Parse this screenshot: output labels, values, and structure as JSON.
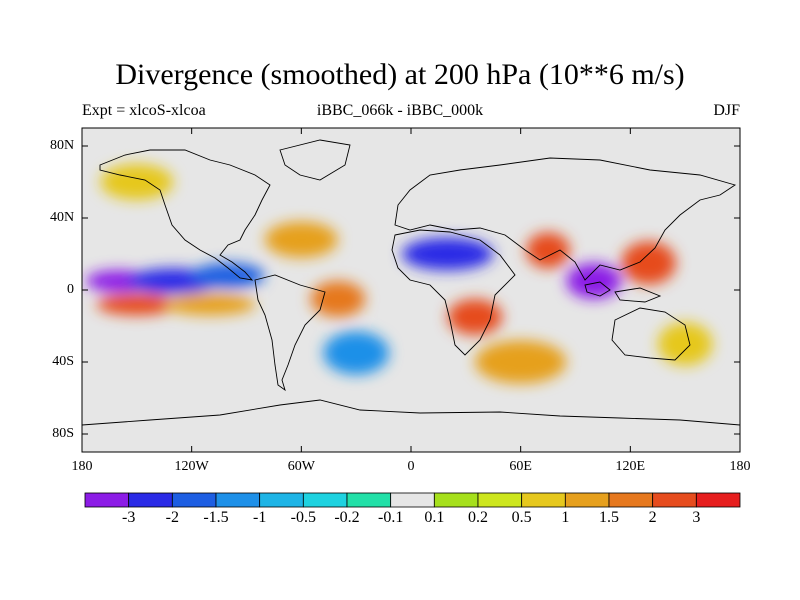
{
  "title": "Divergence (smoothed) at 200 hPa (10**6 m/s)",
  "subtitle_left": "Expt = xlcoS-xlcoa",
  "subtitle_center": "iBBC_066k - iBBC_000k",
  "subtitle_right": "DJF",
  "lat_labels": [
    "80N",
    "40N",
    "0",
    "40S",
    "80S"
  ],
  "lat_values": [
    80,
    40,
    0,
    -40,
    -80
  ],
  "lon_labels": [
    "180",
    "120W",
    "60W",
    "0",
    "60E",
    "120E",
    "180"
  ],
  "lon_values": [
    -180,
    -120,
    -60,
    0,
    60,
    120,
    180
  ],
  "colorbar": {
    "colors": [
      "#8c1ce6",
      "#2a2ae6",
      "#1d5ee2",
      "#1e90e8",
      "#1eb4e6",
      "#1ed2e0",
      "#22e0a8",
      "#e6e6e6",
      "#a6e01c",
      "#cde61e",
      "#e6c81e",
      "#e6a01e",
      "#e6781e",
      "#e64c1e",
      "#e61e1e"
    ],
    "labels": [
      "-3",
      "-2",
      "-1.5",
      "-1",
      "-0.5",
      "-0.2",
      "-0.1",
      "0.1",
      "0.2",
      "0.5",
      "1",
      "1.5",
      "2",
      "3"
    ]
  },
  "map_data": {
    "anomalies": [
      {
        "lon": -160,
        "lat": 5,
        "level": -3,
        "rx": 18,
        "ry": 6
      },
      {
        "lon": -130,
        "lat": 5,
        "level": -2,
        "rx": 25,
        "ry": 7
      },
      {
        "lon": -100,
        "lat": 8,
        "level": -1.5,
        "rx": 20,
        "ry": 7
      },
      {
        "lon": -150,
        "lat": -8,
        "level": 2,
        "rx": 22,
        "ry": 6
      },
      {
        "lon": -110,
        "lat": -8,
        "level": 1,
        "rx": 25,
        "ry": 6
      },
      {
        "lon": -40,
        "lat": -5,
        "level": 1.5,
        "rx": 15,
        "ry": 10
      },
      {
        "lon": -60,
        "lat": 28,
        "level": 1,
        "rx": 20,
        "ry": 10
      },
      {
        "lon": 20,
        "lat": 20,
        "level": -2,
        "rx": 25,
        "ry": 9
      },
      {
        "lon": 35,
        "lat": -15,
        "level": 2,
        "rx": 15,
        "ry": 10
      },
      {
        "lon": 75,
        "lat": 22,
        "level": 2,
        "rx": 12,
        "ry": 10
      },
      {
        "lon": 100,
        "lat": 5,
        "level": -3,
        "rx": 15,
        "ry": 10
      },
      {
        "lon": 130,
        "lat": 15,
        "level": 2,
        "rx": 15,
        "ry": 12
      },
      {
        "lon": -150,
        "lat": 60,
        "level": 0.5,
        "rx": 20,
        "ry": 10
      },
      {
        "lon": -30,
        "lat": -35,
        "level": -1,
        "rx": 18,
        "ry": 12
      },
      {
        "lon": 60,
        "lat": -40,
        "level": 1,
        "rx": 25,
        "ry": 12
      },
      {
        "lon": 150,
        "lat": -30,
        "level": 0.5,
        "rx": 15,
        "ry": 12
      }
    ]
  }
}
